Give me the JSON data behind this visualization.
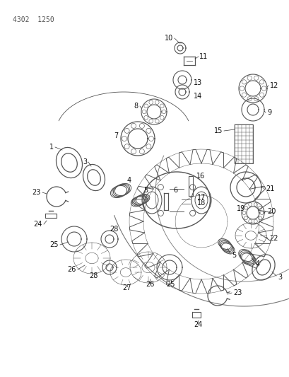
{
  "bg_color": "#ffffff",
  "part_color": "#555555",
  "header_text": "4302  1250",
  "header_fontsize": 7,
  "label_fontsize": 7,
  "label_color": "#111111"
}
